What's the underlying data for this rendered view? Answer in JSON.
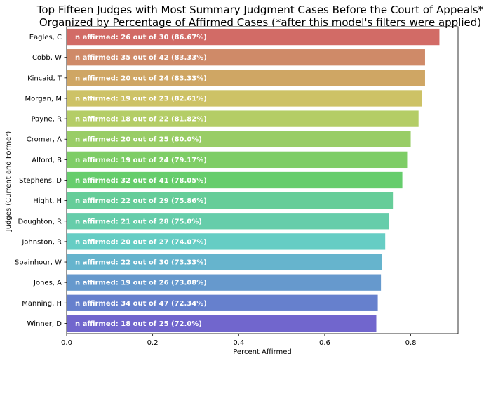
{
  "chart_data": {
    "type": "bar",
    "orientation": "horizontal",
    "title_line1": "Top Fifteen Judges with Most Summary Judgment Cases Before the Court of Appeals*",
    "title_line2": "Organized by Percentage of Affirmed Cases (*after this model's filters were applied)",
    "xlabel": "Percent Affirmed",
    "ylabel": "Judges (Current and Former)",
    "xlim": [
      0,
      0.91
    ],
    "xticks": [
      "0.0",
      "0.2",
      "0.4",
      "0.6",
      "0.8"
    ],
    "grid": false,
    "categories": [
      "Eagles, C",
      "Cobb, W",
      "Kincaid, T",
      "Morgan, M",
      "Payne, R",
      "Cromer, A",
      "Alford, B",
      "Stephens, D",
      "Hight, H",
      "Doughton, R",
      "Johnston, R",
      "Spainhour, W",
      "Jones, A",
      "Manning, H",
      "Winner, D"
    ],
    "values": [
      0.8667,
      0.8333,
      0.8333,
      0.8261,
      0.8182,
      0.8,
      0.7917,
      0.7805,
      0.7586,
      0.75,
      0.7407,
      0.7333,
      0.7308,
      0.7234,
      0.72
    ],
    "bar_labels": [
      "n affirmed: 26 out of 30 (86.67%)",
      "n affirmed: 35 out of 42 (83.33%)",
      "n affirmed: 20 out of 24 (83.33%)",
      "n affirmed: 19 out of 23 (82.61%)",
      "n affirmed: 18 out of 22 (81.82%)",
      "n affirmed: 20 out of 25 (80.0%)",
      "n affirmed: 19 out of 24 (79.17%)",
      "n affirmed: 32 out of 41 (78.05%)",
      "n affirmed: 22 out of 29 (75.86%)",
      "n affirmed: 21 out of 28 (75.0%)",
      "n affirmed: 20 out of 27 (74.07%)",
      "n affirmed: 22 out of 30 (73.33%)",
      "n affirmed: 19 out of 26 (73.08%)",
      "n affirmed: 34 out of 47 (72.34%)",
      "n affirmed: 18 out of 25 (72.0%)"
    ],
    "colors": [
      "#d26b66",
      "#cf8a68",
      "#cfa664",
      "#cdc266",
      "#b4cd66",
      "#99cd66",
      "#7ecd66",
      "#66cd6c",
      "#66cd99",
      "#66cdaa",
      "#66cdc4",
      "#66b4cd",
      "#6699cd",
      "#6680cd",
      "#7166cd"
    ]
  }
}
